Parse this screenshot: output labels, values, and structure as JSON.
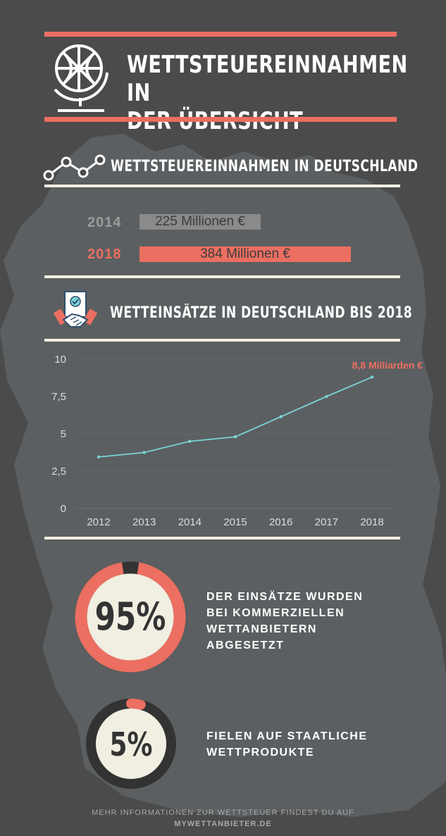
{
  "header": {
    "title_line1": "WETTSTEUEREINNAHMEN IN",
    "title_line2": "DER ÜBERSICHT",
    "icon": "globe-icon"
  },
  "revenue_section": {
    "title": "WETTSTEUEREINNAHMEN IN DEUTSCHLAND",
    "icon": "line-trend-icon",
    "rows": [
      {
        "year": "2014",
        "label": "225 Millionen €",
        "value": 225,
        "color": "#8a8a8a"
      },
      {
        "year": "2018",
        "label": "384 Millionen €",
        "value": 384,
        "color": "#ec6f61"
      }
    ]
  },
  "stakes_section": {
    "title": "WETTEINSÄTZE IN DEUTSCHLAND BIS 2018",
    "icon": "handshake-contract-icon"
  },
  "chart_data": {
    "type": "line",
    "x": [
      "2012",
      "2013",
      "2014",
      "2015",
      "2016",
      "2017",
      "2018"
    ],
    "series": [
      {
        "values": [
          3.45,
          3.75,
          4.5,
          4.8,
          6.15,
          7.5,
          8.8
        ]
      }
    ],
    "yticks": [
      "0",
      "2,5",
      "5",
      "7,5",
      "10"
    ],
    "ylim": [
      0,
      10
    ],
    "grid": true,
    "line_color": "#7ad3d6",
    "annotation": {
      "text": "8,8 Milliarden €",
      "x": "2018",
      "color": "#ec6f61"
    }
  },
  "shares": [
    {
      "percent": 95,
      "label": "95%",
      "text_lines": [
        "DER EINSÄTZE WURDEN",
        "BEI KOMMERZIELLEN",
        "WETTANBIETERN",
        "ABGESETZT"
      ]
    },
    {
      "percent": 5,
      "label": "5%",
      "text_lines": [
        "FIELEN AUF STAATLICHE",
        "WETTPRODUKTE"
      ]
    }
  ],
  "colors": {
    "background": "#4b4b4b",
    "accent_red": "#ec6f61",
    "cream": "#f1eee2",
    "ring_track": "#333333",
    "map": "#5b5f61"
  },
  "footer": {
    "line1": "MEHR INFORMATIONEN ZUR WETTSTEUER FINDEST DU AUF",
    "line2": "MYWETTANBIETER.DE"
  }
}
